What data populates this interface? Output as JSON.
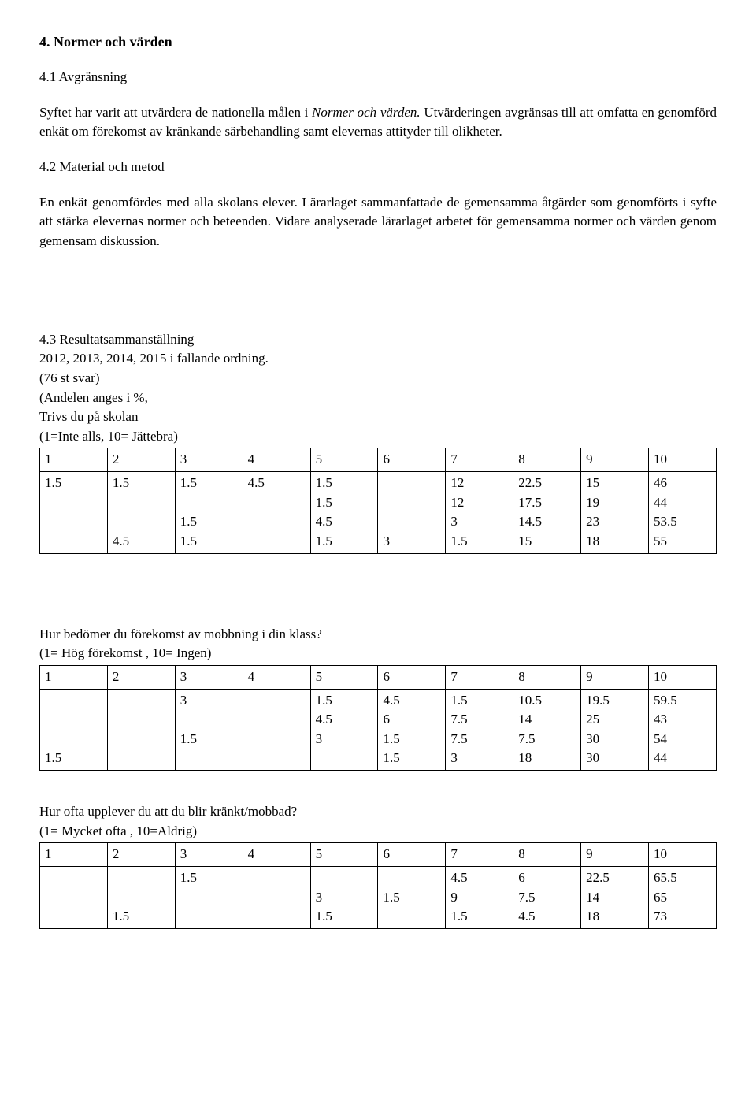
{
  "section": {
    "title": "4. Normer och värden",
    "sub1": "4.1 Avgränsning",
    "para1_a": "Syftet har varit att utvärdera de nationella målen i ",
    "para1_italic": "Normer och värden. ",
    "para1_b": "Utvärderingen avgränsas till att omfatta en genomförd enkät om förekomst av kränkande särbehandling samt elevernas attityder till olikheter.",
    "sub2": "4.2 Material och metod",
    "para2": "En enkät genomfördes med alla skolans elever. Lärarlaget sammanfattade de gemensamma åtgärder som genomförts i syfte att stärka elevernas normer och beteenden. Vidare analyserade lärarlaget arbetet för gemensamma normer och värden genom gemensam diskussion.",
    "sub3": "4.3 Resultatsammanställning",
    "sub3_line2": "2012, 2013, 2014, 2015 i fallande ordning.",
    "sub3_line3": "(76 st svar)",
    "sub3_line4": "(Andelen anges i %,"
  },
  "table1": {
    "title": "Trivs du på skolan",
    "scale": "(1=Inte alls, 10= Jättebra)",
    "header": [
      "1",
      "2",
      "3",
      "4",
      "5",
      "6",
      "7",
      "8",
      "9",
      "10"
    ],
    "rows": [
      [
        "1.5",
        "1.5\n\n\n4.5",
        "1.5\n\n1.5\n1.5",
        "4.5",
        "1.5\n1.5\n4.5\n1.5",
        "\n\n\n3",
        "12\n12\n3\n1.5",
        "22.5\n17.5\n14.5\n15",
        "15\n19\n23\n18",
        "46\n44\n53.5\n55"
      ]
    ]
  },
  "table2": {
    "title": " Hur bedömer du förekomst av mobbning i din klass?",
    "scale": "(1= Hög förekomst , 10= Ingen)",
    "header": [
      "1",
      "2",
      "3",
      "4",
      "5",
      "6",
      "7",
      "8",
      "9",
      "10"
    ],
    "rows": [
      [
        "\n\n\n1.5",
        "",
        "3\n\n1.5",
        "",
        "1.5\n4.5\n3",
        "4.5\n6\n1.5\n1.5",
        "1.5\n7.5\n7.5\n3",
        "10.5\n14\n7.5\n18",
        "19.5\n25\n30\n30",
        "59.5\n43\n54\n44"
      ]
    ]
  },
  "table3": {
    "title": "Hur ofta upplever du att du blir kränkt/mobbad?",
    "scale": "(1= Mycket ofta , 10=Aldrig)",
    "header": [
      "1",
      "2",
      "3",
      "4",
      "5",
      "6",
      "7",
      "8",
      "9",
      "10"
    ],
    "rows": [
      [
        "",
        "\n\n1.5",
        "1.5",
        "",
        "\n3\n1.5",
        "\n1.5",
        "4.5\n9\n1.5",
        "6\n7.5\n4.5",
        "22.5\n14\n18",
        "65.5\n65\n73"
      ]
    ]
  }
}
